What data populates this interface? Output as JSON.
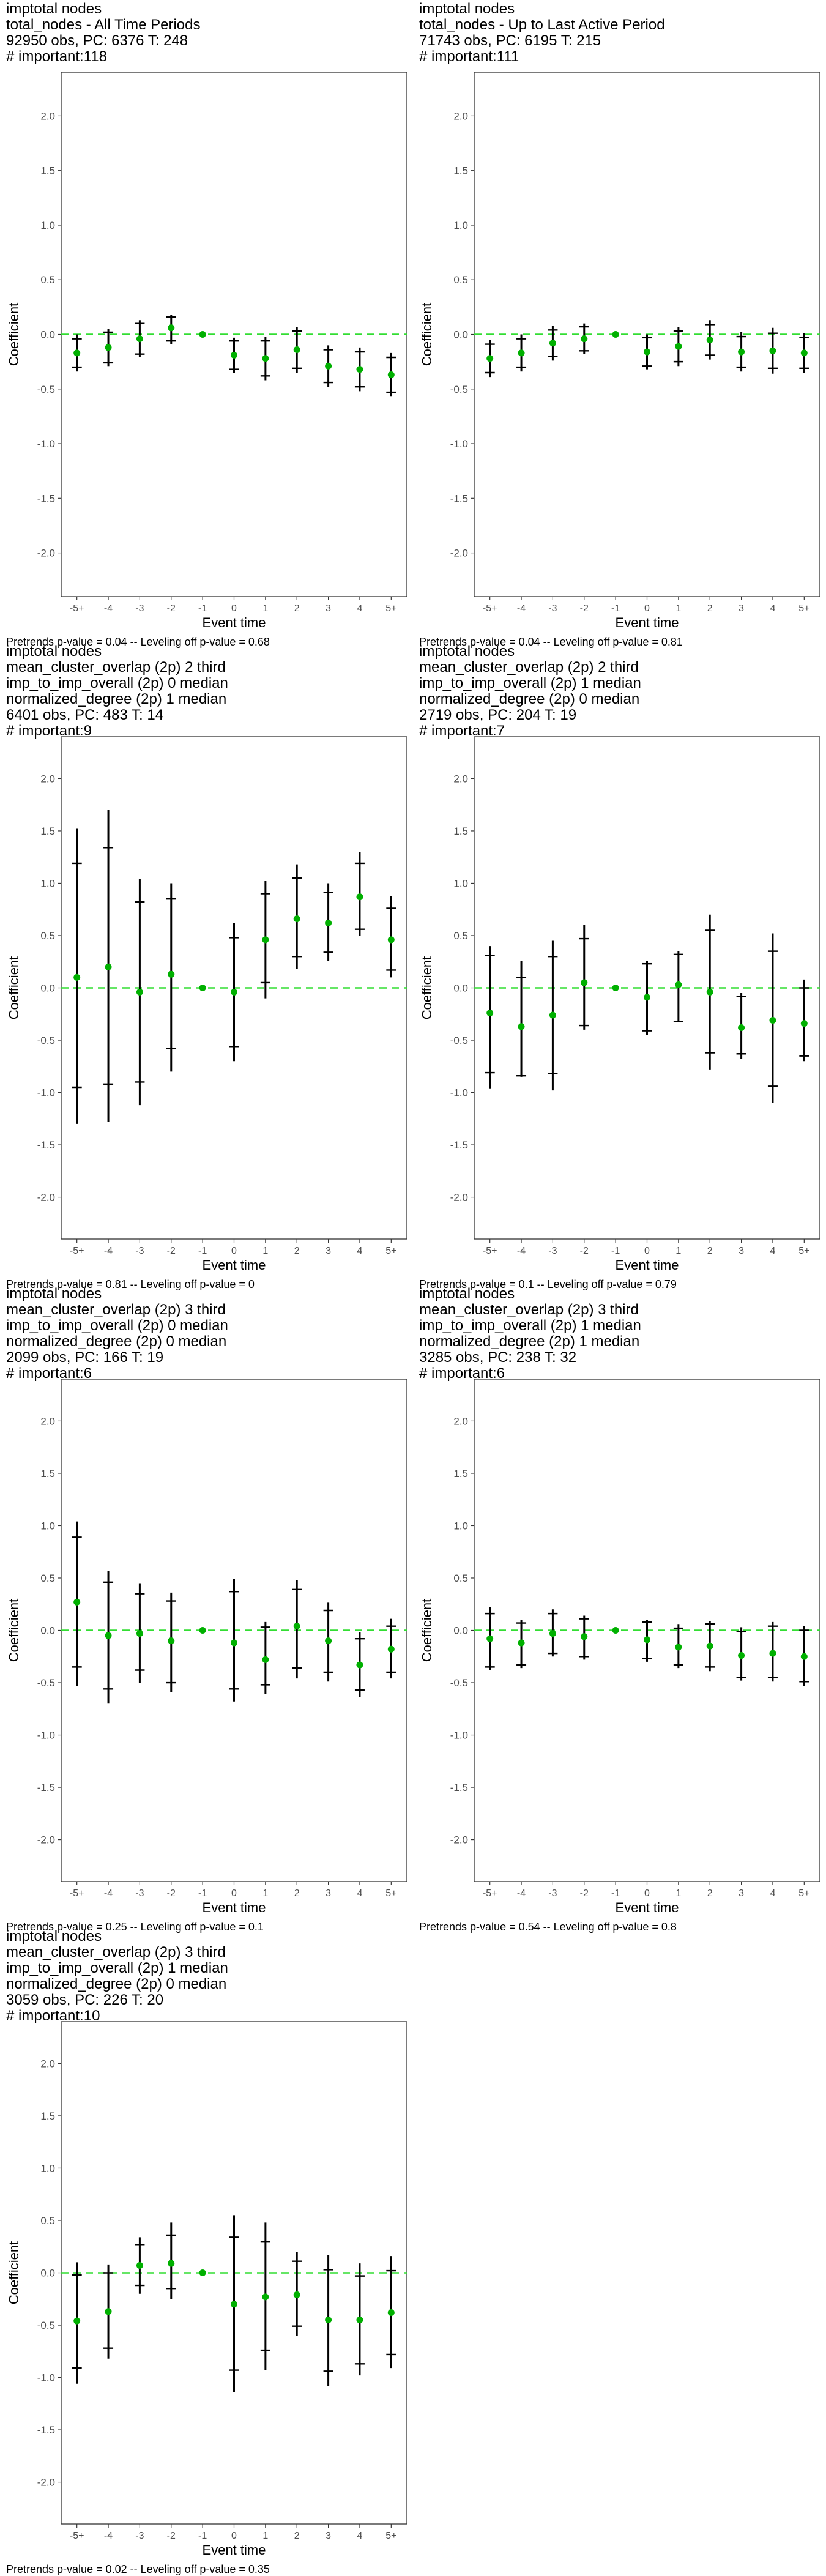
{
  "common": {
    "xlabel": "Event time",
    "ylabel": "Coefficient",
    "x_ticks": [
      "-5+",
      "-4",
      "-3",
      "-2",
      "-1",
      "0",
      "1",
      "2",
      "3",
      "4",
      "5+"
    ],
    "y_ticks": [
      "-2.0",
      "-1.5",
      "-1.0",
      "-0.5",
      "0.0",
      "0.5",
      "1.0",
      "1.5",
      "2.0"
    ],
    "ylim": [
      -2.4,
      2.4
    ],
    "point_color": "#00b000",
    "ci_color": "#000000",
    "zero_line_color": "#33dd33"
  },
  "chart_data": [
    {
      "type": "scatter",
      "title_lines": [
        "imptotal nodes",
        "total_nodes - All Time Periods",
        "92950 obs, PC: 6376 T: 248",
        "# important:118"
      ],
      "footer": "Pretrends p-value = 0.04 -- Leveling off p-value = 0.68",
      "x": [
        "-5+",
        "-4",
        "-3",
        "-2",
        "-1",
        "0",
        "1",
        "2",
        "3",
        "4",
        "5+"
      ],
      "y": [
        -0.17,
        -0.12,
        -0.04,
        0.06,
        0.0,
        -0.19,
        -0.22,
        -0.14,
        -0.29,
        -0.32,
        -0.37
      ],
      "ci_low": [
        -0.34,
        -0.29,
        -0.21,
        -0.09,
        0.0,
        -0.35,
        -0.42,
        -0.35,
        -0.48,
        -0.52,
        -0.57
      ],
      "ci_high": [
        0.0,
        0.05,
        0.13,
        0.18,
        0.0,
        -0.03,
        -0.02,
        0.07,
        -0.1,
        -0.12,
        -0.17
      ],
      "band_low": [
        -0.3,
        -0.26,
        -0.18,
        -0.06,
        0.0,
        -0.32,
        -0.38,
        -0.31,
        -0.44,
        -0.48,
        -0.53
      ],
      "band_high": [
        -0.04,
        0.02,
        0.1,
        0.16,
        0.0,
        -0.06,
        -0.06,
        0.03,
        -0.14,
        -0.16,
        -0.21
      ]
    },
    {
      "type": "scatter",
      "title_lines": [
        "imptotal nodes",
        "total_nodes - Up to Last Active Period",
        "71743 obs, PC: 6195 T: 215",
        "# important:111"
      ],
      "footer": "Pretrends p-value = 0.04 -- Leveling off p-value = 0.81",
      "x": [
        "-5+",
        "-4",
        "-3",
        "-2",
        "-1",
        "0",
        "1",
        "2",
        "3",
        "4",
        "5+"
      ],
      "y": [
        -0.22,
        -0.17,
        -0.08,
        -0.04,
        0.0,
        -0.16,
        -0.11,
        -0.05,
        -0.16,
        -0.15,
        -0.17
      ],
      "ci_low": [
        -0.39,
        -0.34,
        -0.24,
        -0.18,
        0.0,
        -0.32,
        -0.29,
        -0.23,
        -0.34,
        -0.36,
        -0.35
      ],
      "ci_high": [
        -0.05,
        0.0,
        0.08,
        0.1,
        0.0,
        0.0,
        0.07,
        0.13,
        0.02,
        0.06,
        0.01
      ],
      "band_low": [
        -0.35,
        -0.3,
        -0.2,
        -0.15,
        0.0,
        -0.29,
        -0.25,
        -0.19,
        -0.3,
        -0.31,
        -0.31
      ],
      "band_high": [
        -0.09,
        -0.04,
        0.04,
        0.07,
        0.0,
        -0.03,
        0.03,
        0.09,
        -0.02,
        0.01,
        -0.03
      ]
    },
    {
      "type": "scatter",
      "title_lines": [
        "imptotal nodes",
        "mean_cluster_overlap (2p) 2 third",
        "imp_to_imp_overall (2p) 0 median",
        "normalized_degree (2p) 1 median",
        "6401 obs, PC: 483 T: 14",
        "# important:9"
      ],
      "footer": "Pretrends p-value = 0.81 -- Leveling off p-value = 0",
      "x": [
        "-5+",
        "-4",
        "-3",
        "-2",
        "-1",
        "0",
        "1",
        "2",
        "3",
        "4",
        "5+"
      ],
      "y": [
        0.1,
        0.2,
        -0.04,
        0.13,
        0.0,
        -0.04,
        0.46,
        0.66,
        0.62,
        0.87,
        0.46
      ],
      "ci_low": [
        -1.3,
        -1.28,
        -1.12,
        -0.8,
        0.0,
        -0.7,
        -0.1,
        0.18,
        0.26,
        0.5,
        0.1
      ],
      "ci_high": [
        1.52,
        1.7,
        1.04,
        1.0,
        0.0,
        0.62,
        1.02,
        1.18,
        1.0,
        1.3,
        0.88
      ],
      "band_low": [
        -0.95,
        -0.92,
        -0.9,
        -0.58,
        0.0,
        -0.56,
        0.05,
        0.3,
        0.34,
        0.56,
        0.17
      ],
      "band_high": [
        1.19,
        1.34,
        0.82,
        0.85,
        0.0,
        0.48,
        0.9,
        1.05,
        0.91,
        1.19,
        0.76
      ]
    },
    {
      "type": "scatter",
      "title_lines": [
        "imptotal nodes",
        "mean_cluster_overlap (2p) 2 third",
        "imp_to_imp_overall (2p) 1 median",
        "normalized_degree (2p) 0 median",
        "2719 obs, PC: 204 T: 19",
        "# important:7"
      ],
      "footer": "Pretrends p-value = 0.1 -- Leveling off p-value = 0.79",
      "x": [
        "-5+",
        "-4",
        "-3",
        "-2",
        "-1",
        "0",
        "1",
        "2",
        "3",
        "4",
        "5+"
      ],
      "y": [
        -0.24,
        -0.37,
        -0.26,
        0.05,
        0.0,
        -0.09,
        0.03,
        -0.04,
        -0.38,
        -0.31,
        -0.34
      ],
      "ci_low": [
        -0.96,
        -0.85,
        -0.98,
        -0.4,
        0.0,
        -0.45,
        -0.33,
        -0.78,
        -0.68,
        -1.1,
        -0.7
      ],
      "ci_high": [
        0.4,
        0.26,
        0.45,
        0.6,
        0.0,
        0.26,
        0.35,
        0.7,
        -0.05,
        0.52,
        0.08
      ],
      "band_low": [
        -0.81,
        -0.84,
        -0.82,
        -0.36,
        0.0,
        -0.41,
        -0.32,
        -0.62,
        -0.63,
        -0.94,
        -0.65
      ],
      "band_high": [
        0.31,
        0.1,
        0.3,
        0.47,
        0.0,
        0.23,
        0.32,
        0.55,
        -0.08,
        0.35,
        0.0
      ]
    },
    {
      "type": "scatter",
      "title_lines": [
        "imptotal nodes",
        "mean_cluster_overlap (2p) 3 third",
        "imp_to_imp_overall (2p) 0 median",
        "normalized_degree (2p) 0 median",
        "2099 obs, PC: 166 T: 19",
        "# important:6"
      ],
      "footer": "Pretrends p-value = 0.25 -- Leveling off p-value = 0.1",
      "x": [
        "-5+",
        "-4",
        "-3",
        "-2",
        "-1",
        "0",
        "1",
        "2",
        "3",
        "4",
        "5+"
      ],
      "y": [
        0.27,
        -0.05,
        -0.03,
        -0.1,
        0.0,
        -0.12,
        -0.28,
        0.04,
        -0.1,
        -0.33,
        -0.18
      ],
      "ci_low": [
        -0.53,
        -0.7,
        -0.5,
        -0.59,
        0.0,
        -0.68,
        -0.61,
        -0.46,
        -0.49,
        -0.64,
        -0.46
      ],
      "ci_high": [
        1.04,
        0.57,
        0.45,
        0.36,
        0.0,
        0.49,
        0.08,
        0.48,
        0.27,
        -0.02,
        0.11
      ],
      "band_low": [
        -0.35,
        -0.56,
        -0.38,
        -0.5,
        0.0,
        -0.56,
        -0.52,
        -0.36,
        -0.4,
        -0.57,
        -0.4
      ],
      "band_high": [
        0.89,
        0.46,
        0.35,
        0.28,
        0.0,
        0.37,
        0.03,
        0.39,
        0.19,
        -0.08,
        0.04
      ]
    },
    {
      "type": "scatter",
      "title_lines": [
        "imptotal nodes",
        "mean_cluster_overlap (2p) 3 third",
        "imp_to_imp_overall (2p) 1 median",
        "normalized_degree (2p) 1 median",
        "3285 obs, PC: 238 T: 32",
        "# important:6"
      ],
      "footer": "Pretrends p-value = 0.54 -- Leveling off p-value = 0.8",
      "x": [
        "-5+",
        "-4",
        "-3",
        "-2",
        "-1",
        "0",
        "1",
        "2",
        "3",
        "4",
        "5+"
      ],
      "y": [
        -0.08,
        -0.12,
        -0.03,
        -0.06,
        0.0,
        -0.09,
        -0.16,
        -0.15,
        -0.24,
        -0.22,
        -0.25
      ],
      "ci_low": [
        -0.38,
        -0.36,
        -0.25,
        -0.28,
        0.0,
        -0.3,
        -0.36,
        -0.39,
        -0.48,
        -0.49,
        -0.53
      ],
      "ci_high": [
        0.22,
        0.1,
        0.2,
        0.14,
        0.0,
        0.1,
        0.06,
        0.09,
        0.03,
        0.08,
        0.04
      ],
      "band_low": [
        -0.35,
        -0.33,
        -0.22,
        -0.25,
        0.0,
        -0.27,
        -0.33,
        -0.35,
        -0.45,
        -0.45,
        -0.49
      ],
      "band_high": [
        0.16,
        0.07,
        0.16,
        0.11,
        0.0,
        0.08,
        0.02,
        0.06,
        -0.01,
        0.04,
        0.0
      ]
    },
    {
      "type": "scatter",
      "title_lines": [
        "imptotal nodes",
        "mean_cluster_overlap (2p) 3 third",
        "imp_to_imp_overall (2p) 1 median",
        "normalized_degree (2p) 0 median",
        "3059 obs, PC: 226 T: 20",
        "# important:10"
      ],
      "footer": "Pretrends p-value = 0.02 -- Leveling off p-value = 0.35",
      "x": [
        "-5+",
        "-4",
        "-3",
        "-2",
        "-1",
        "0",
        "1",
        "2",
        "3",
        "4",
        "5+"
      ],
      "y": [
        -0.46,
        -0.37,
        0.07,
        0.09,
        0.0,
        -0.3,
        -0.23,
        -0.21,
        -0.45,
        -0.45,
        -0.38
      ],
      "ci_low": [
        -1.06,
        -0.82,
        -0.2,
        -0.25,
        0.0,
        -1.14,
        -0.93,
        -0.6,
        -1.08,
        -0.98,
        -0.91
      ],
      "ci_high": [
        0.1,
        0.08,
        0.34,
        0.48,
        0.0,
        0.55,
        0.48,
        0.2,
        0.17,
        0.09,
        0.16
      ],
      "band_low": [
        -0.91,
        -0.72,
        -0.12,
        -0.15,
        0.0,
        -0.93,
        -0.74,
        -0.51,
        -0.94,
        -0.87,
        -0.78
      ],
      "band_high": [
        -0.02,
        0.0,
        0.27,
        0.36,
        0.0,
        0.34,
        0.3,
        0.11,
        0.03,
        -0.03,
        0.02
      ]
    }
  ]
}
